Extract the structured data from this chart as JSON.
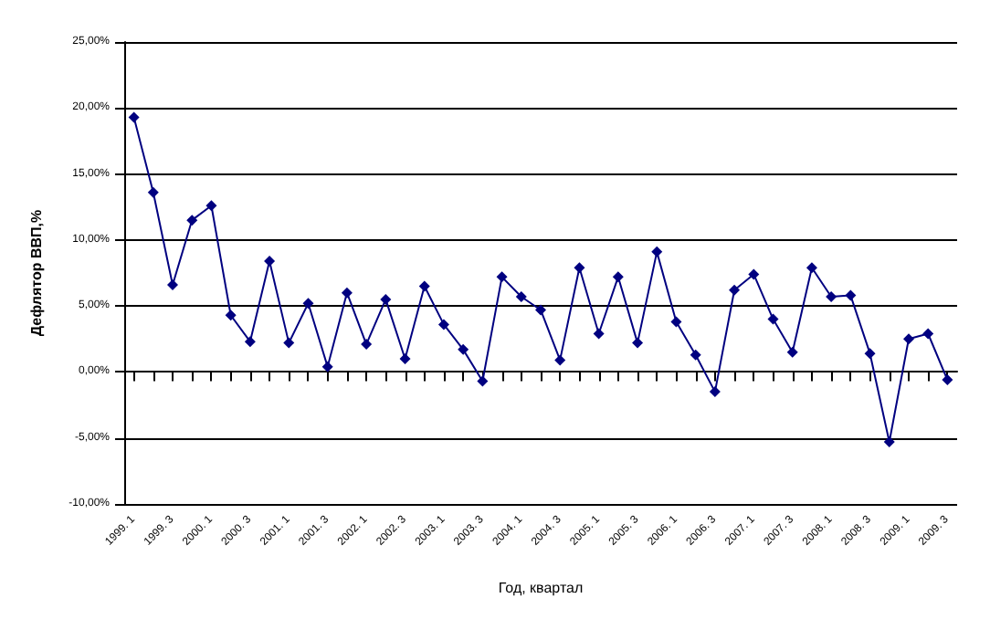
{
  "chart_data": {
    "type": "line",
    "xlabel": "Год, квартал",
    "ylabel": "Дефлятор ВВП,%",
    "categories": [
      "1999. 1",
      null,
      "1999. 3",
      null,
      "2000. 1",
      null,
      "2000. 3",
      null,
      "2001. 1",
      null,
      "2001. 3",
      null,
      "2002. 1",
      null,
      "2002. 3",
      null,
      "2003. 1",
      null,
      "2003. 3",
      null,
      "2004. 1",
      null,
      "2004. 3",
      null,
      "2005. 1",
      null,
      "2005. 3",
      null,
      "2006. 1",
      null,
      "2006. 3",
      null,
      "2007. 1",
      null,
      "2007. 3",
      null,
      "2008. 1",
      null,
      "2008. 3",
      null,
      "2009. 1",
      null,
      "2009. 3"
    ],
    "series": [
      {
        "color": "#000080",
        "values": [
          19.3,
          13.6,
          6.6,
          11.5,
          12.6,
          4.3,
          2.3,
          8.4,
          2.2,
          5.2,
          0.4,
          6.0,
          2.1,
          5.5,
          1.0,
          6.5,
          3.6,
          1.7,
          -0.7,
          7.2,
          5.7,
          4.7,
          0.9,
          7.9,
          2.9,
          7.2,
          2.2,
          9.1,
          3.8,
          1.3,
          -1.5,
          6.2,
          7.4,
          4.0,
          1.5,
          7.9,
          5.7,
          5.8,
          1.4,
          -5.3,
          2.5,
          2.9,
          -0.6
        ]
      }
    ],
    "ylim": [
      -10,
      25
    ],
    "yticks": [
      {
        "value": -10,
        "label": "-10,00%"
      },
      {
        "value": -5,
        "label": "-5,00%"
      },
      {
        "value": 0,
        "label": "0,00%"
      },
      {
        "value": 5,
        "label": "5,00%"
      },
      {
        "value": 10,
        "label": "10,00%"
      },
      {
        "value": 15,
        "label": "15,00%"
      },
      {
        "value": 20,
        "label": "20,00%"
      },
      {
        "value": 25,
        "label": "25,00%"
      }
    ],
    "grid": "y",
    "marker": "diamond",
    "line_style": "solid"
  }
}
